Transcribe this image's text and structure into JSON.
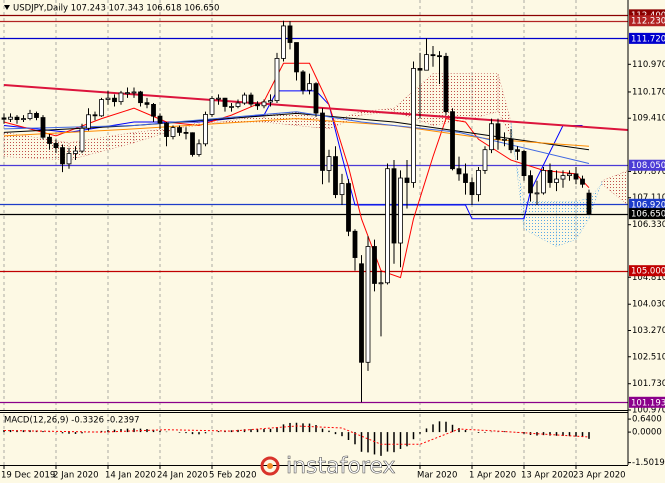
{
  "chart_data": [
    {
      "type": "candlestick",
      "title": "USDJPY,Daily 107.243 107.343 106.618 106.650",
      "categories": [
        "19 Dec 2019",
        null,
        null,
        null,
        null,
        null,
        null,
        null,
        "2 Jan 2020",
        null,
        null,
        null,
        null,
        null,
        null,
        null,
        "14 Jan 2020",
        null,
        null,
        null,
        null,
        null,
        null,
        null,
        "24 Jan 2020",
        null,
        null,
        null,
        null,
        null,
        null,
        null,
        "5 Feb 2020",
        null,
        null,
        null,
        null,
        null,
        null,
        null,
        null,
        null,
        null,
        null,
        null,
        null,
        null,
        null,
        null,
        null,
        null,
        null,
        null,
        null,
        null,
        null,
        null,
        null,
        null,
        null,
        null,
        null,
        null,
        null,
        "Mar 2020",
        null,
        null,
        null,
        null,
        null,
        null,
        null,
        "1 Apr 2020",
        null,
        null,
        null,
        null,
        null,
        null,
        null,
        "13 Apr 2020",
        null,
        null,
        null,
        null,
        null,
        null,
        null,
        "23 Apr 2020",
        null,
        null
      ],
      "open": [
        109.42,
        109.38,
        109.44,
        109.37,
        109.4,
        109.55,
        109.43,
        108.86,
        108.68,
        108.56,
        108.09,
        108.39,
        108.46,
        109.12,
        109.51,
        109.48,
        109.95,
        109.99,
        109.89,
        110.14,
        110.15,
        110.17,
        109.86,
        109.81,
        109.47,
        109.27,
        108.88,
        109.14,
        109.0,
        108.99,
        108.36,
        108.67,
        109.52,
        109.98,
        109.99,
        109.75,
        109.75,
        109.85,
        110.08,
        109.82,
        109.77,
        109.88,
        109.92,
        111.14,
        112.08,
        111.6,
        110.75,
        110.22,
        110.41,
        109.56,
        107.9,
        108.3,
        107.2,
        107.52,
        106.14,
        105.2,
        102.35,
        105.7,
        104.63,
        104.65,
        107.95,
        105.8,
        107.68,
        107.55,
        110.85,
        110.8,
        111.25,
        111.22,
        111.2,
        109.6,
        107.95,
        107.8,
        107.55,
        107.2,
        107.9,
        108.5,
        109.25,
        108.8,
        108.8,
        108.5,
        108.45,
        107.75,
        107.25,
        107.25,
        107.9,
        107.55,
        107.65,
        107.75,
        107.8,
        107.65,
        107.243
      ],
      "high": [
        109.55,
        109.55,
        109.5,
        109.5,
        109.65,
        109.6,
        109.5,
        108.95,
        108.8,
        108.65,
        108.55,
        108.6,
        109.25,
        109.7,
        109.6,
        110.0,
        110.2,
        110.1,
        110.2,
        110.3,
        110.3,
        110.2,
        110.0,
        109.85,
        109.55,
        109.3,
        109.2,
        109.2,
        109.15,
        109.0,
        108.8,
        109.6,
        110.05,
        110.1,
        110.0,
        109.85,
        109.95,
        110.15,
        110.15,
        109.9,
        109.95,
        110.1,
        111.3,
        112.23,
        112.22,
        111.6,
        110.8,
        110.7,
        110.45,
        109.7,
        108.5,
        108.6,
        107.8,
        107.65,
        106.2,
        105.45,
        106.0,
        105.9,
        105.0,
        108.1,
        108.2,
        107.9,
        108.2,
        111.05,
        111.3,
        111.72,
        111.5,
        111.35,
        111.3,
        109.7,
        108.3,
        108.1,
        107.7,
        108.0,
        108.6,
        109.4,
        109.4,
        109.0,
        109.1,
        108.6,
        108.5,
        107.9,
        107.6,
        108.0,
        108.1,
        107.9,
        107.9,
        107.9,
        108.0,
        107.75,
        107.343
      ],
      "low": [
        109.25,
        109.3,
        109.25,
        109.3,
        109.35,
        109.35,
        108.8,
        108.5,
        108.4,
        107.85,
        107.95,
        108.2,
        108.4,
        109.05,
        109.35,
        109.45,
        109.8,
        109.75,
        109.8,
        110.0,
        110.0,
        109.75,
        109.7,
        109.3,
        109.1,
        108.6,
        108.8,
        108.9,
        108.8,
        108.3,
        108.3,
        108.6,
        109.45,
        109.8,
        109.6,
        109.6,
        109.7,
        109.8,
        109.75,
        109.65,
        109.7,
        109.75,
        109.85,
        111.05,
        111.4,
        110.5,
        110.1,
        110.1,
        109.45,
        107.5,
        107.55,
        107.1,
        106.9,
        106.0,
        105.0,
        101.193,
        102.1,
        104.4,
        103.1,
        104.6,
        105.2,
        105.1,
        106.8,
        107.4,
        109.4,
        110.8,
        110.9,
        110.4,
        109.5,
        107.9,
        107.6,
        107.2,
        106.9,
        107.0,
        107.8,
        108.4,
        108.5,
        108.6,
        108.4,
        108.2,
        107.6,
        107.0,
        106.9,
        107.2,
        107.4,
        107.3,
        107.4,
        107.6,
        107.5,
        107.4,
        106.618
      ],
      "close": [
        109.38,
        109.44,
        109.37,
        109.4,
        109.55,
        109.43,
        108.86,
        108.68,
        108.56,
        108.09,
        108.39,
        108.46,
        109.12,
        109.51,
        109.48,
        109.95,
        109.99,
        109.89,
        110.14,
        110.15,
        110.17,
        109.86,
        109.81,
        109.47,
        109.27,
        108.88,
        109.14,
        109.0,
        108.99,
        108.36,
        108.67,
        109.52,
        109.98,
        109.99,
        109.75,
        109.75,
        109.85,
        110.08,
        109.82,
        109.77,
        109.88,
        109.92,
        111.14,
        112.08,
        111.6,
        110.75,
        110.22,
        110.41,
        109.56,
        107.9,
        108.3,
        107.2,
        107.52,
        106.14,
        105.38,
        102.35,
        105.7,
        104.63,
        104.65,
        107.95,
        105.8,
        107.68,
        107.55,
        110.85,
        110.8,
        111.25,
        111.22,
        111.2,
        109.6,
        107.95,
        107.8,
        107.55,
        107.2,
        107.9,
        108.5,
        109.25,
        108.8,
        108.8,
        108.5,
        108.45,
        107.75,
        107.25,
        107.25,
        107.9,
        107.55,
        107.65,
        107.75,
        107.8,
        107.65,
        107.5,
        106.65
      ],
      "up_color": "#ffffff",
      "down_color": "#000000",
      "ylim": [
        100.97,
        112.83
      ],
      "yticks": [
        {
          "value": 110.97,
          "label": "110.970"
        },
        {
          "value": 110.17,
          "label": "110.170"
        },
        {
          "value": 109.41,
          "label": "109.410"
        },
        {
          "value": 107.87,
          "label": "107.870"
        },
        {
          "value": 107.11,
          "label": "107.110"
        },
        {
          "value": 106.33,
          "label": "106.330"
        },
        {
          "value": 104.81,
          "label": "104.810"
        },
        {
          "value": 104.03,
          "label": "104.030"
        },
        {
          "value": 103.27,
          "label": "103.270"
        },
        {
          "value": 102.51,
          "label": "102.510"
        },
        {
          "value": 101.73,
          "label": "101.730"
        },
        {
          "value": 100.97,
          "label": "100.970"
        }
      ],
      "levels": [
        {
          "value": 112.4,
          "label": "112.400",
          "color": "#8b0000"
        },
        {
          "value": 112.23,
          "label": "112.230",
          "color": "#b22222"
        },
        {
          "value": 111.72,
          "label": "111.720",
          "color": "#0000cd"
        },
        {
          "value": 108.05,
          "label": "108.050",
          "color": "#4b3bd6"
        },
        {
          "value": 106.92,
          "label": "106.920",
          "color": "#1e3cc8"
        },
        {
          "value": 106.65,
          "label": "106.650",
          "color": "#000000"
        },
        {
          "value": 105.0,
          "label": "105.000",
          "color": "#c00000"
        },
        {
          "value": 101.193,
          "label": "101.193",
          "color": "#8b008b"
        }
      ],
      "lines": [
        {
          "color": "#0000ff",
          "x": [
            0,
            10,
            20,
            30,
            40,
            42,
            48,
            50,
            52,
            54,
            71,
            72,
            80,
            81,
            86,
            89
          ],
          "values": [
            109.2,
            109.0,
            109.3,
            109.3,
            109.5,
            110.2,
            110.2,
            109.8,
            108.3,
            106.9,
            106.9,
            106.5,
            106.5,
            107.3,
            109.2,
            109.2
          ]
        },
        {
          "color": "#ff0000",
          "x": [
            0,
            8,
            15,
            20,
            25,
            30,
            35,
            40,
            43,
            47,
            50,
            53,
            55,
            58,
            61,
            63,
            66,
            68,
            71,
            73,
            78,
            83,
            88,
            90
          ],
          "values": [
            109.3,
            108.9,
            109.4,
            109.7,
            109.3,
            109.2,
            109.5,
            109.9,
            111.0,
            111.0,
            109.8,
            108.0,
            106.5,
            105.0,
            104.8,
            106.5,
            108.3,
            109.4,
            109.3,
            108.8,
            108.2,
            107.9,
            107.8,
            107.4
          ]
        },
        {
          "color": "#000000",
          "x": [
            0,
            20,
            45,
            60,
            75,
            90
          ],
          "values": [
            109.0,
            109.2,
            109.55,
            109.3,
            108.9,
            108.5
          ]
        },
        {
          "color": "#ff8c00",
          "x": [
            0,
            20,
            45,
            60,
            75,
            90
          ],
          "values": [
            108.9,
            109.1,
            109.4,
            109.2,
            108.8,
            108.6
          ]
        },
        {
          "color": "#4169e1",
          "x": [
            0,
            20,
            45,
            55,
            70,
            90
          ],
          "values": [
            109.1,
            109.2,
            109.6,
            109.3,
            109.0,
            108.1
          ]
        },
        {
          "color": "#dc143c",
          "width": 2,
          "x": [
            0,
            96
          ],
          "values": [
            110.37,
            109.07
          ]
        }
      ],
      "cloud": {
        "x": [
          0,
          10,
          20,
          30,
          40,
          45,
          50,
          55,
          60,
          66,
          72,
          76,
          78,
          80,
          85,
          88,
          90,
          92,
          96
        ],
        "span_a": [
          108.3,
          108.2,
          108.7,
          109.3,
          109.3,
          109.2,
          109.1,
          109.5,
          109.6,
          109.2,
          109.4,
          109.6,
          108.9,
          107.0,
          107.0,
          107.0,
          107.1,
          107.5,
          106.9
        ],
        "span_b": [
          109.0,
          108.7,
          109.0,
          109.2,
          109.5,
          109.6,
          109.3,
          109.6,
          109.7,
          110.7,
          110.7,
          110.7,
          109.3,
          106.2,
          105.7,
          105.9,
          106.5,
          107.6,
          107.9
        ],
        "up_color": "#5aa9e6",
        "down_color": "#c0504d"
      },
      "grid": "vertical"
    },
    {
      "type": "macd",
      "title": "MACD(12,26,9) -0.3326 -0.2397",
      "values": [
        0.1,
        0.1,
        0.09,
        0.09,
        0.09,
        0.08,
        0.05,
        0.02,
        -0.01,
        -0.06,
        -0.08,
        -0.09,
        -0.06,
        -0.02,
        0.01,
        0.06,
        0.1,
        0.12,
        0.15,
        0.17,
        0.18,
        0.17,
        0.15,
        0.11,
        0.07,
        0.02,
        0.0,
        -0.03,
        -0.05,
        -0.1,
        -0.11,
        -0.06,
        0.0,
        0.05,
        0.07,
        0.09,
        0.11,
        0.14,
        0.14,
        0.14,
        0.15,
        0.16,
        0.25,
        0.38,
        0.45,
        0.46,
        0.43,
        0.42,
        0.35,
        0.17,
        0.07,
        -0.1,
        -0.2,
        -0.39,
        -0.6,
        -0.97,
        -1.0,
        -1.1,
        -1.17,
        -0.96,
        -0.99,
        -0.83,
        -0.7,
        -0.35,
        -0.08,
        0.18,
        0.38,
        0.53,
        0.51,
        0.36,
        0.2,
        0.1,
        0.0,
        -0.04,
        -0.03,
        0.02,
        0.02,
        0.04,
        0.01,
        -0.02,
        -0.08,
        -0.14,
        -0.17,
        -0.15,
        -0.17,
        -0.18,
        -0.19,
        -0.2,
        -0.22,
        -0.24,
        -0.3326
      ],
      "color": "#000000",
      "signal": {
        "color": "#ff0000",
        "x": [
          0,
          15,
          25,
          35,
          45,
          52,
          58,
          64,
          70,
          76,
          82,
          90
        ],
        "values": [
          0.08,
          0.0,
          0.12,
          0.05,
          0.3,
          0.2,
          -0.6,
          -0.6,
          0.15,
          0.05,
          -0.08,
          -0.2397
        ]
      },
      "ylim": [
        -1.62,
        0.94
      ],
      "yticks": [
        {
          "value": 0.64,
          "label": "0.6400"
        },
        {
          "value": 0,
          "label": "0.0000"
        },
        {
          "value": -1.5019,
          "label": "-1.5019"
        }
      ]
    }
  ],
  "watermark": "instaforex"
}
